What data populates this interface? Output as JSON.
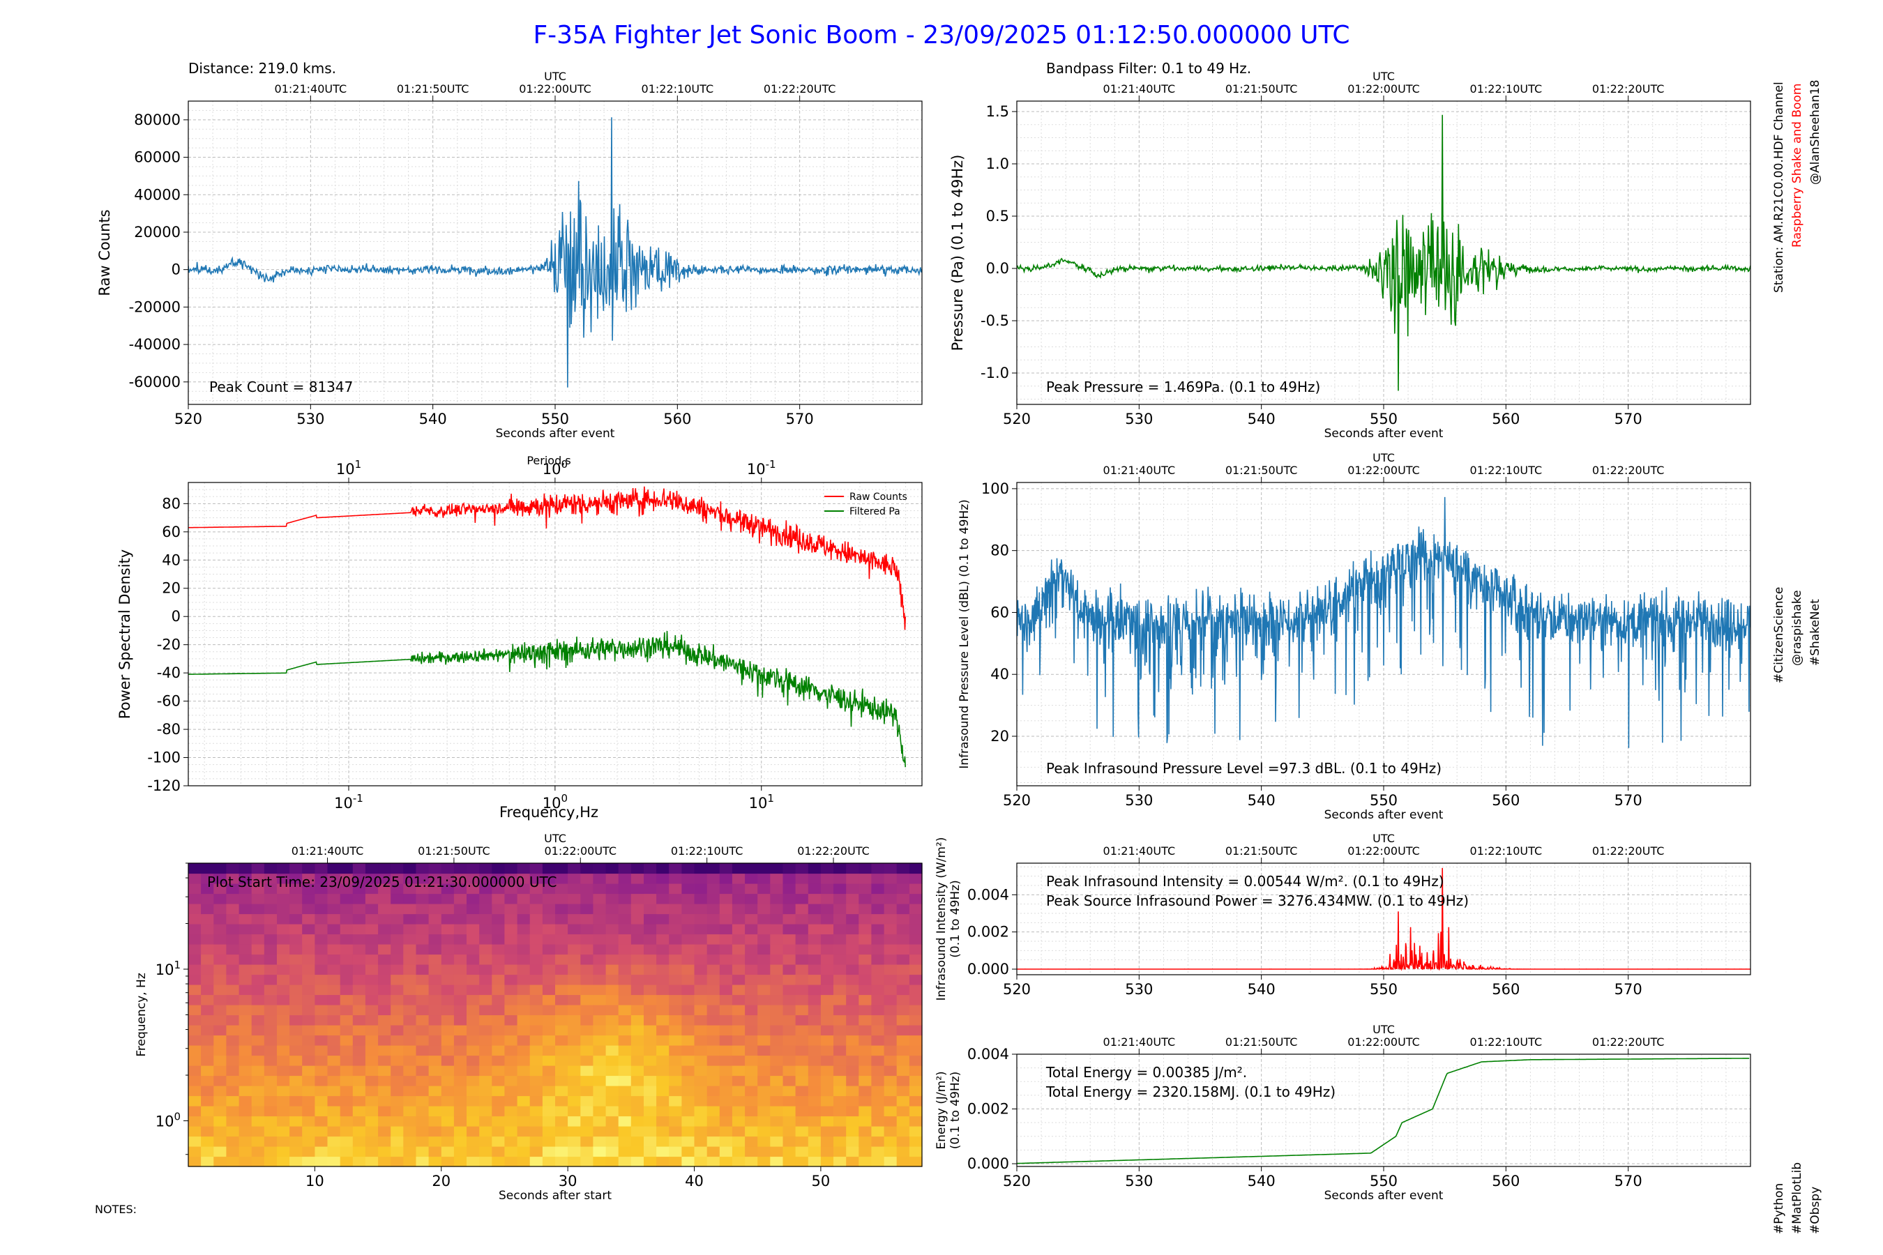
{
  "title": "F-35A Fighter Jet Sonic Boom - 23/09/2025 01:12:50.000000 UTC",
  "notes_label": "NOTES:",
  "side_labels": {
    "station": "Station: AM.R21C0.00.HDF Channel",
    "brand": "Raspberry Shake and Boom",
    "handle": "@AlanSheehan18",
    "tags_mid": [
      "#CitizenScience",
      "@raspishake",
      "#ShakeNet"
    ],
    "tags_bottom": [
      "#Python",
      "#MatPlotLib",
      "#Obspy"
    ]
  },
  "colors": {
    "title": "#0000ff",
    "blue": "#1f77b4",
    "green": "#008000",
    "red": "#ff0000",
    "brand": "#ff0000"
  },
  "utc": {
    "label": "UTC",
    "ticks": [
      "01:21:40UTC",
      "01:21:50UTC",
      "01:22:00UTC",
      "01:22:10UTC",
      "01:22:20UTC"
    ],
    "tick_seconds": [
      530,
      540,
      550,
      560,
      570
    ]
  },
  "chart_data": [
    {
      "id": "raw",
      "type": "line",
      "header_left": "Distance: 219.0 kms.",
      "ylabel": "Raw Counts",
      "xlabel": "Seconds after event",
      "xlim": [
        520,
        580
      ],
      "ylim": [
        -72000,
        90000
      ],
      "xticks": [
        520,
        530,
        540,
        550,
        560,
        570
      ],
      "yticks": [
        -60000,
        -40000,
        -20000,
        0,
        20000,
        40000,
        60000,
        80000
      ],
      "annotation": "Peak Count = 81347",
      "peak": 81347,
      "series_color": "#1f77b4"
    },
    {
      "id": "filtered",
      "type": "line",
      "header_left": "Bandpass Filter: 0.1 to 49 Hz.",
      "ylabel": "Pressure (Pa) (0.1 to 49Hz)",
      "xlabel": "Seconds after event",
      "xlim": [
        520,
        580
      ],
      "ylim": [
        -1.3,
        1.6
      ],
      "xticks": [
        520,
        530,
        540,
        550,
        560,
        570
      ],
      "yticks": [
        -1.0,
        -0.5,
        0.0,
        0.5,
        1.0,
        1.5
      ],
      "annotation": "Peak Pressure = 1.469Pa. (0.1 to 49Hz)",
      "peak": 1.469,
      "series_color": "#008000"
    },
    {
      "id": "psd",
      "type": "line",
      "ylabel": "Power Spectral Density",
      "xlabel": "Frequency,Hz",
      "top_label": "Period,s",
      "xscale": "log",
      "xlim": [
        0.0167,
        60
      ],
      "ylim": [
        -120,
        95
      ],
      "yticks": [
        -120,
        -100,
        -80,
        -60,
        -40,
        -20,
        0,
        20,
        40,
        60,
        80
      ],
      "xticks_bottom": [
        "10^-1",
        "10^0",
        "10^1"
      ],
      "xticks_top": [
        "10^1",
        "10^0",
        "10^-1"
      ],
      "legend": [
        "Raw Counts",
        "Filtered Pa"
      ],
      "series": [
        {
          "name": "Raw Counts",
          "color": "#ff0000"
        },
        {
          "name": "Filtered Pa",
          "color": "#008000"
        }
      ]
    },
    {
      "id": "ipl",
      "type": "line",
      "ylabel": "Infrasound Pressure Level (dBL) (0.1 to 49Hz)",
      "xlabel": "Seconds after event",
      "xlim": [
        520,
        580
      ],
      "ylim": [
        4,
        102
      ],
      "xticks": [
        520,
        530,
        540,
        550,
        560,
        570
      ],
      "yticks": [
        20,
        40,
        60,
        80,
        100
      ],
      "annotation": "Peak Infrasound Pressure Level =97.3 dBL. (0.1 to 49Hz)",
      "peak": 97.3,
      "series_color": "#1f77b4"
    },
    {
      "id": "spectrogram",
      "type": "heatmap",
      "ylabel": "Frequency, Hz",
      "xlabel": "Seconds after start",
      "xlim": [
        0,
        58
      ],
      "yscale": "log",
      "ylim": [
        0.5,
        50
      ],
      "xticks": [
        10,
        20,
        30,
        40,
        50
      ],
      "yticks": [
        "10^0",
        "10^1"
      ],
      "annotation": "Plot Start Time:  23/09/2025 01:21:30.000000 UTC"
    },
    {
      "id": "intensity",
      "type": "line",
      "ylabel": [
        "Infrasound Intensity (W/m²)",
        "(0.1 to 49Hz)"
      ],
      "xlabel": "",
      "xlim": [
        520,
        580
      ],
      "ylim": [
        -0.0003,
        0.0057
      ],
      "xticks": [
        520,
        530,
        540,
        550,
        560,
        570
      ],
      "yticks": [
        0.0,
        0.002,
        0.004
      ],
      "ytick_labels": [
        "0.000",
        "0.002",
        "0.004"
      ],
      "annotations": [
        "Peak Infrasound Intensity = 0.00544 W/m². (0.1 to 49Hz)",
        "Peak Source Infrasound Power = 3276.434MW. (0.1 to 49Hz)"
      ],
      "peak": 0.00544,
      "series_color": "#ff0000"
    },
    {
      "id": "energy",
      "type": "line",
      "ylabel": [
        "Energy (J/m²)",
        "(0.1 to 49Hz)"
      ],
      "xlabel": "Seconds after event",
      "xlim": [
        520,
        580
      ],
      "ylim": [
        -0.0001,
        0.004
      ],
      "xticks": [
        520,
        530,
        540,
        550,
        560,
        570
      ],
      "yticks": [
        0.0,
        0.002,
        0.004
      ],
      "ytick_labels": [
        "0.000",
        "0.002",
        "0.004"
      ],
      "annotations": [
        "Total Energy = 0.00385 J/m².",
        "Total Energy = 2320.158MJ. (0.1 to 49Hz)"
      ],
      "total": 0.00385,
      "series_color": "#008000"
    }
  ]
}
